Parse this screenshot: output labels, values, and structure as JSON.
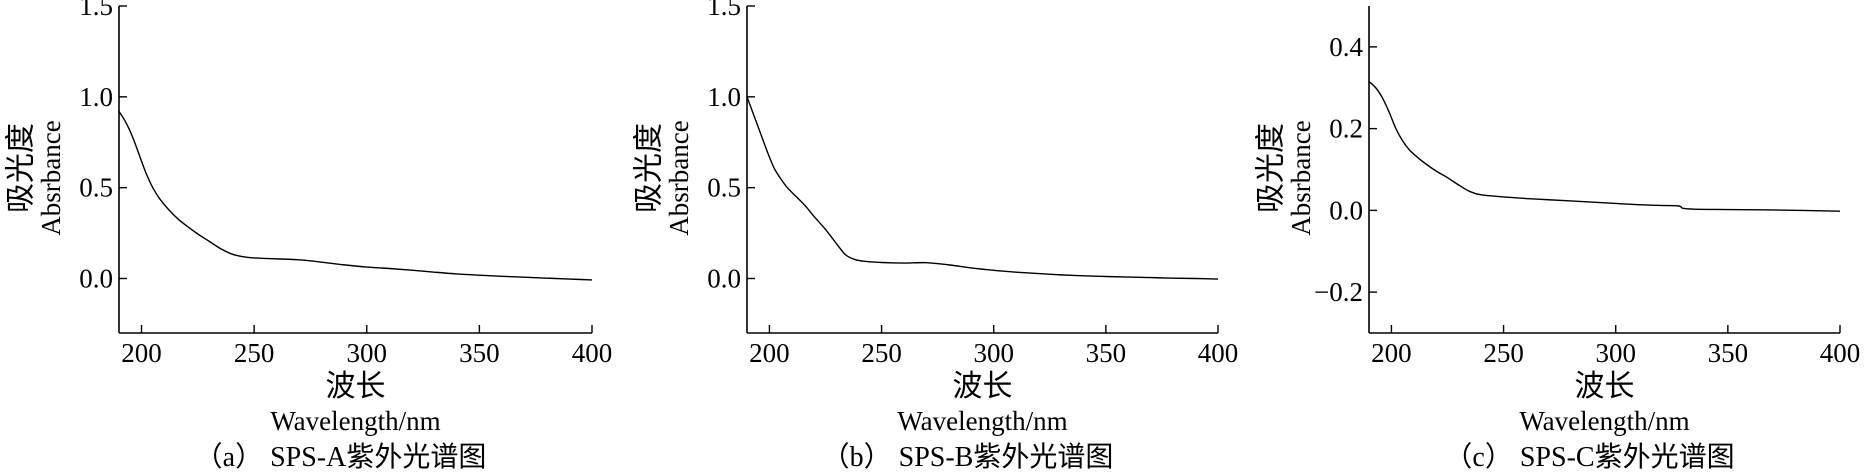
{
  "chart_data": [
    {
      "type": "line",
      "caption": "（a） SPS-A紫外光谱图",
      "xlabel": "波长",
      "xlabel_en": "Wavelength/nm",
      "ylabel": "吸光度",
      "ylabel_en": "Absrbance",
      "xlim": [
        190,
        400
      ],
      "ylim": [
        -0.3,
        1.5
      ],
      "xticks": [
        200,
        250,
        300,
        350,
        400
      ],
      "xtick_labels": [
        "200",
        "250",
        "300",
        "350",
        "400"
      ],
      "yticks": [
        0.0,
        0.5,
        1.0,
        1.5
      ],
      "ytick_labels": [
        "0.0",
        "0.5",
        "1.0",
        "1.5"
      ],
      "grid": false,
      "legend": "none",
      "series": [
        {
          "x": [
            190,
            193,
            196,
            199,
            202,
            205,
            208,
            212,
            216,
            220,
            225,
            230,
            235,
            240,
            245,
            250,
            260,
            270,
            280,
            290,
            300,
            310,
            320,
            330,
            340,
            350,
            360,
            370,
            380,
            390,
            400
          ],
          "y": [
            0.92,
            0.86,
            0.78,
            0.68,
            0.58,
            0.5,
            0.44,
            0.38,
            0.33,
            0.29,
            0.245,
            0.205,
            0.165,
            0.135,
            0.12,
            0.113,
            0.108,
            0.103,
            0.09,
            0.075,
            0.063,
            0.055,
            0.046,
            0.035,
            0.025,
            0.018,
            0.012,
            0.007,
            0.002,
            -0.003,
            -0.008
          ]
        }
      ]
    },
    {
      "type": "line",
      "caption": "（b） SPS-B紫外光谱图",
      "xlabel": "波长",
      "xlabel_en": "Wavelength/nm",
      "ylabel": "吸光度",
      "ylabel_en": "Absrbance",
      "xlim": [
        190,
        400
      ],
      "ylim": [
        -0.3,
        1.5
      ],
      "xticks": [
        200,
        250,
        300,
        350,
        400
      ],
      "xtick_labels": [
        "200",
        "250",
        "300",
        "350",
        "400"
      ],
      "yticks": [
        0.0,
        0.5,
        1.0,
        1.5
      ],
      "ytick_labels": [
        "0.0",
        "0.5",
        "1.0",
        "1.5"
      ],
      "grid": false,
      "legend": "none",
      "series": [
        {
          "x": [
            190,
            193,
            196,
            199,
            202,
            205,
            208,
            212,
            216,
            220,
            225,
            230,
            234,
            238,
            242,
            250,
            260,
            270,
            280,
            290,
            300,
            310,
            320,
            330,
            340,
            350,
            360,
            370,
            380,
            390,
            400
          ],
          "y": [
            1.0,
            0.9,
            0.8,
            0.7,
            0.61,
            0.55,
            0.5,
            0.45,
            0.4,
            0.34,
            0.27,
            0.19,
            0.13,
            0.105,
            0.095,
            0.088,
            0.085,
            0.087,
            0.075,
            0.058,
            0.045,
            0.035,
            0.027,
            0.02,
            0.015,
            0.011,
            0.008,
            0.005,
            0.002,
            0.0,
            -0.003
          ]
        }
      ]
    },
    {
      "type": "line",
      "caption": "（c） SPS-C紫外光谱图",
      "xlabel": "波长",
      "xlabel_en": "Wavelength/nm",
      "ylabel": "吸光度",
      "ylabel_en": "Absrbance",
      "xlim": [
        190,
        400
      ],
      "ylim": [
        -0.3,
        0.5
      ],
      "xticks": [
        200,
        250,
        300,
        350,
        400
      ],
      "xtick_labels": [
        "200",
        "250",
        "300",
        "350",
        "400"
      ],
      "yticks": [
        -0.2,
        0.0,
        0.2,
        0.4
      ],
      "ytick_labels": [
        "−0.2",
        "0.0",
        "0.2",
        "0.4"
      ],
      "grid": false,
      "legend": "none",
      "series": [
        {
          "x": [
            190,
            193,
            196,
            199,
            202,
            205,
            208,
            212,
            216,
            220,
            225,
            230,
            235,
            240,
            250,
            260,
            270,
            280,
            290,
            300,
            310,
            320,
            328,
            330,
            335,
            350,
            370,
            400
          ],
          "y": [
            0.315,
            0.3,
            0.275,
            0.24,
            0.2,
            0.17,
            0.148,
            0.128,
            0.111,
            0.096,
            0.08,
            0.062,
            0.046,
            0.038,
            0.033,
            0.029,
            0.026,
            0.023,
            0.02,
            0.017,
            0.014,
            0.012,
            0.011,
            0.005,
            0.003,
            0.002,
            0.001,
            -0.002
          ]
        }
      ]
    }
  ]
}
